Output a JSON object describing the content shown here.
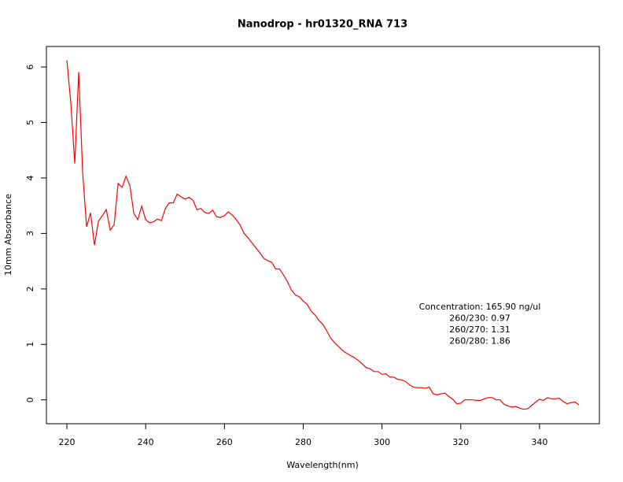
{
  "chart_data": {
    "type": "line",
    "title": "Nanodrop - hr01320_RNA 713",
    "x_label": "Wavelength(nm)",
    "y_label": "10mm Absorbance",
    "annotations": [
      "Concentration: 165.90 ng/ul",
      "260/230: 0.97",
      "260/270: 1.31",
      "260/280: 1.86"
    ],
    "color": "#ff0000",
    "x": [
      220,
      221,
      222,
      223,
      224,
      225,
      226,
      227,
      228,
      229,
      230,
      231,
      232,
      233,
      234,
      235,
      236,
      237,
      238,
      239,
      240,
      241,
      242,
      243,
      244,
      245,
      246,
      247,
      248,
      249,
      250,
      251,
      252,
      253,
      254,
      255,
      256,
      257,
      258,
      259,
      260,
      261,
      262,
      263,
      264,
      265,
      266,
      267,
      268,
      269,
      270,
      271,
      272,
      273,
      274,
      275,
      276,
      277,
      278,
      279,
      280,
      281,
      282,
      283,
      284,
      285,
      286,
      287,
      288,
      289,
      290,
      291,
      292,
      293,
      294,
      295,
      296,
      297,
      298,
      299,
      300,
      301,
      302,
      303,
      304,
      305,
      306,
      307,
      308,
      309,
      310,
      311,
      312,
      313,
      314,
      315,
      316,
      317,
      318,
      319,
      320,
      321,
      322,
      323,
      324,
      325,
      326,
      327,
      328,
      329,
      330,
      331,
      332,
      333,
      334,
      335,
      336,
      337,
      338,
      339,
      340,
      341,
      342,
      343,
      344,
      345,
      346,
      347,
      348,
      349,
      350
    ],
    "values": [
      6.12,
      5.35,
      4.26,
      5.91,
      4.1,
      3.12,
      3.37,
      2.79,
      3.22,
      3.32,
      3.43,
      3.06,
      3.16,
      3.9,
      3.83,
      4.03,
      3.86,
      3.36,
      3.25,
      3.49,
      3.25,
      3.19,
      3.21,
      3.26,
      3.23,
      3.45,
      3.55,
      3.55,
      3.71,
      3.66,
      3.62,
      3.65,
      3.6,
      3.43,
      3.45,
      3.38,
      3.36,
      3.42,
      3.3,
      3.29,
      3.32,
      3.39,
      3.33,
      3.25,
      3.15,
      3.0,
      2.92,
      2.83,
      2.74,
      2.65,
      2.55,
      2.51,
      2.48,
      2.36,
      2.36,
      2.25,
      2.13,
      1.98,
      1.89,
      1.86,
      1.78,
      1.72,
      1.6,
      1.53,
      1.43,
      1.36,
      1.24,
      1.11,
      1.03,
      0.96,
      0.89,
      0.84,
      0.8,
      0.76,
      0.71,
      0.65,
      0.58,
      0.56,
      0.51,
      0.51,
      0.46,
      0.47,
      0.41,
      0.41,
      0.37,
      0.36,
      0.33,
      0.27,
      0.23,
      0.22,
      0.22,
      0.21,
      0.23,
      0.11,
      0.09,
      0.11,
      0.12,
      0.06,
      0.01,
      -0.07,
      -0.06,
      0.0,
      0.0,
      0.0,
      -0.01,
      -0.01,
      0.02,
      0.04,
      0.04,
      0.0,
      0.0,
      -0.08,
      -0.11,
      -0.13,
      -0.12,
      -0.15,
      -0.17,
      -0.16,
      -0.1,
      -0.04,
      0.01,
      -0.01,
      0.04,
      0.02,
      0.02,
      0.03,
      -0.03,
      -0.07,
      -0.05,
      -0.04,
      -0.09
    ],
    "xlim": [
      214.8,
      355.2
    ],
    "ylim": [
      -0.43,
      6.37
    ],
    "xticks": [
      220,
      240,
      260,
      280,
      300,
      320,
      340
    ],
    "yticks": [
      0,
      1,
      2,
      3,
      4,
      5,
      6
    ]
  }
}
